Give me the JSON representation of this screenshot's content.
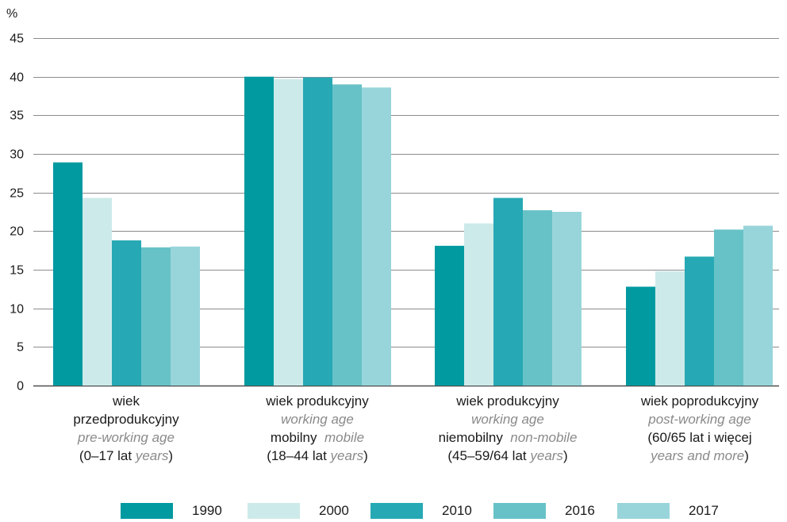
{
  "chart_data": {
    "type": "bar",
    "y_unit": "%",
    "ylim": [
      0,
      45
    ],
    "yticks": [
      "0",
      "5",
      "10",
      "15",
      "20",
      "25",
      "30",
      "35",
      "40",
      "45"
    ],
    "grid": true,
    "legend_position": "bottom",
    "categories": [
      {
        "line1": "wiek",
        "line2": "przedprodukcyjny",
        "line3_italic": "pre-working age",
        "line4_normal": "(0–17 lat",
        "line4_italic": "years",
        "line4_end": ")"
      },
      {
        "line1": "wiek produkcyjny",
        "line2_italic": "working age",
        "line3_normal": "mobilny",
        "line3_italic": "mobile",
        "line4_normal": "(18–44 lat",
        "line4_italic": "years",
        "line4_end": ")"
      },
      {
        "line1": "wiek produkcyjny",
        "line2_italic": "working age",
        "line3_normal": "niemobilny",
        "line3_italic": "non-mobile",
        "line4_normal": "(45–59/64 lat",
        "line4_italic": "years",
        "line4_end": ")"
      },
      {
        "line1": "wiek poprodukcyjny",
        "line2_italic": "post-working age",
        "line3": "(60/65 lat i więcej",
        "line4_italic": "years and more",
        "line4_end": ")"
      }
    ],
    "series": [
      {
        "name": "1990",
        "color": "#009aa0",
        "values": [
          28.9,
          40.0,
          18.1,
          12.8
        ]
      },
      {
        "name": "2000",
        "color": "#cdeaea",
        "values": [
          24.3,
          39.7,
          21.0,
          14.8
        ]
      },
      {
        "name": "2010",
        "color": "#26a9b4",
        "values": [
          18.8,
          39.9,
          24.3,
          16.7
        ]
      },
      {
        "name": "2016",
        "color": "#67c2c7",
        "values": [
          17.9,
          39.0,
          22.7,
          20.2
        ]
      },
      {
        "name": "2017",
        "color": "#98d5da",
        "values": [
          18.0,
          38.6,
          22.5,
          20.7
        ]
      }
    ]
  }
}
